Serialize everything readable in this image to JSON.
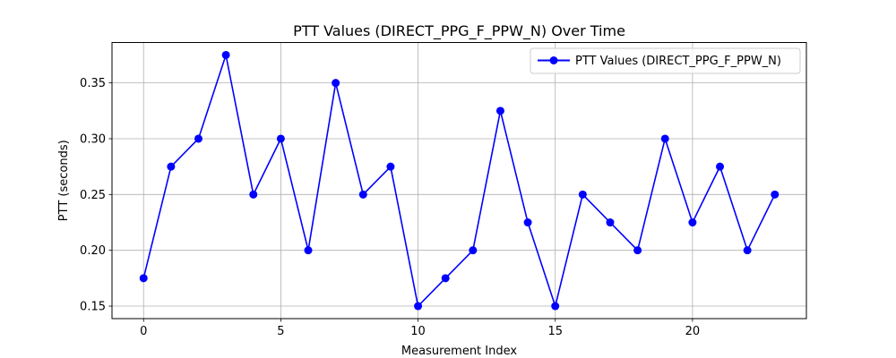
{
  "chart_data": {
    "type": "line",
    "title": "PTT Values (DIRECT_PPG_F_PPW_N) Over Time",
    "xlabel": "Measurement Index",
    "ylabel": "PTT (seconds)",
    "xlim": [
      -1.15,
      24.15
    ],
    "ylim": [
      0.1388,
      0.3862
    ],
    "xticks": [
      0,
      5,
      10,
      15,
      20
    ],
    "yticks": [
      0.15,
      0.2,
      0.25,
      0.3,
      0.35
    ],
    "ytick_labels": [
      "0.15",
      "0.20",
      "0.25",
      "0.30",
      "0.35"
    ],
    "grid": true,
    "legend_position": "top-right",
    "series": [
      {
        "name": "PTT Values (DIRECT_PPG_F_PPW_N)",
        "color": "#0000ff",
        "marker": "circle",
        "x": [
          0,
          1,
          2,
          3,
          4,
          5,
          6,
          7,
          8,
          9,
          10,
          11,
          12,
          13,
          14,
          15,
          16,
          17,
          18,
          19,
          20,
          21,
          22,
          23
        ],
        "values": [
          0.175,
          0.275,
          0.3,
          0.375,
          0.25,
          0.3,
          0.2,
          0.35,
          0.25,
          0.275,
          0.15,
          0.175,
          0.2,
          0.325,
          0.225,
          0.15,
          0.25,
          0.225,
          0.2,
          0.3,
          0.225,
          0.275,
          0.2,
          0.25
        ]
      }
    ]
  }
}
